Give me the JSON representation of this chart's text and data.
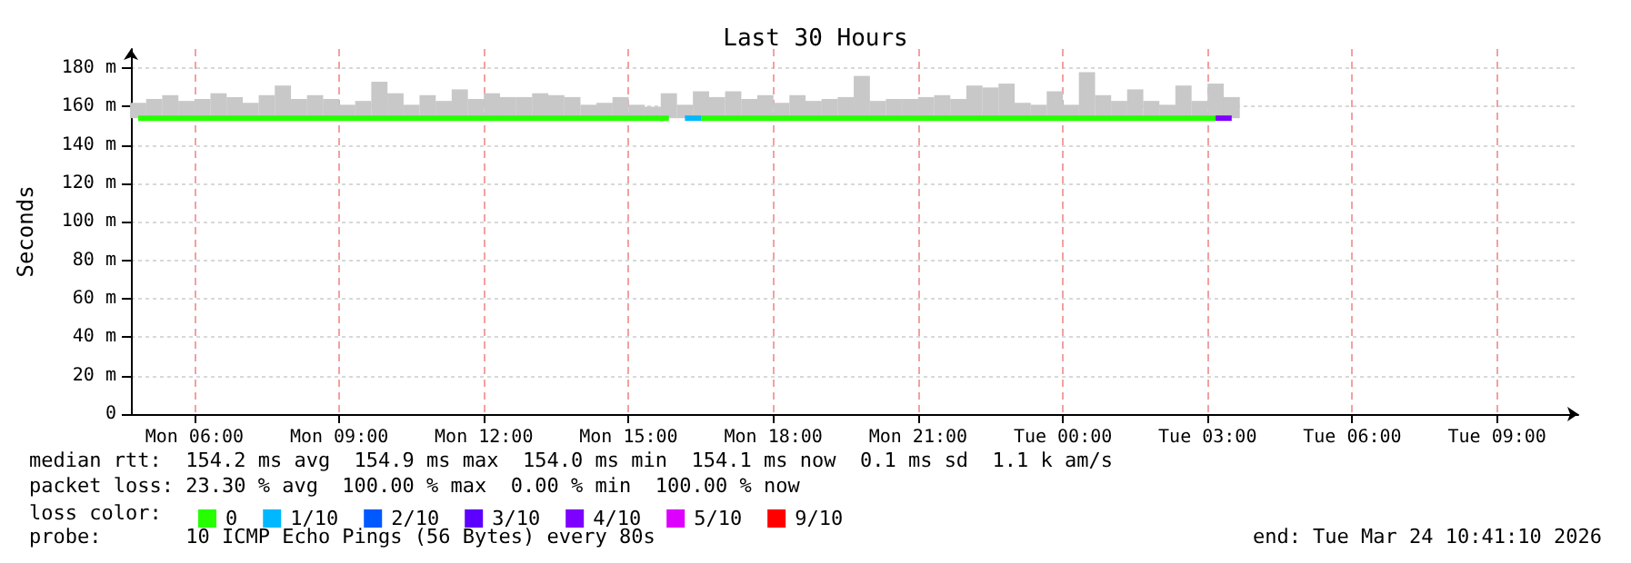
{
  "chart_data": {
    "type": "bar",
    "title": "Last 30 Hours",
    "ylabel": "Seconds",
    "legend_title": "loss color:",
    "legend": "bottom",
    "grid": true,
    "x": [
      "2026-03-23T04:50",
      "2026-03-23T05:10",
      "2026-03-23T05:30",
      "2026-03-23T05:50",
      "2026-03-23T06:10",
      "2026-03-23T06:30",
      "2026-03-23T06:50",
      "2026-03-23T07:10",
      "2026-03-23T07:30",
      "2026-03-23T07:50",
      "2026-03-23T08:10",
      "2026-03-23T08:30",
      "2026-03-23T08:50",
      "2026-03-23T09:10",
      "2026-03-23T09:30",
      "2026-03-23T09:50",
      "2026-03-23T10:10",
      "2026-03-23T10:30",
      "2026-03-23T10:50",
      "2026-03-23T11:10",
      "2026-03-23T11:30",
      "2026-03-23T11:50",
      "2026-03-23T12:10",
      "2026-03-23T12:30",
      "2026-03-23T12:50",
      "2026-03-23T13:10",
      "2026-03-23T13:30",
      "2026-03-23T13:50",
      "2026-03-23T14:10",
      "2026-03-23T14:30",
      "2026-03-23T14:50",
      "2026-03-23T15:10",
      "2026-03-23T15:30",
      "2026-03-23T15:50",
      "2026-03-23T16:10",
      "2026-03-23T16:30",
      "2026-03-23T16:50",
      "2026-03-23T17:10",
      "2026-03-23T17:30",
      "2026-03-23T17:50",
      "2026-03-23T18:10",
      "2026-03-23T18:30",
      "2026-03-23T18:50",
      "2026-03-23T19:10",
      "2026-03-23T19:30",
      "2026-03-23T19:50",
      "2026-03-23T20:10",
      "2026-03-23T20:30",
      "2026-03-23T20:50",
      "2026-03-23T21:10",
      "2026-03-23T21:30",
      "2026-03-23T21:50",
      "2026-03-23T22:10",
      "2026-03-23T22:30",
      "2026-03-23T22:50",
      "2026-03-23T23:10",
      "2026-03-23T23:30",
      "2026-03-23T23:50",
      "2026-03-24T00:10",
      "2026-03-24T00:30",
      "2026-03-24T00:50",
      "2026-03-24T01:10",
      "2026-03-24T01:30",
      "2026-03-24T01:50",
      "2026-03-24T02:10",
      "2026-03-24T02:30",
      "2026-03-24T02:50",
      "2026-03-24T03:10",
      "2026-03-24T03:30"
    ],
    "xlim": [
      "2026-03-23T04:41",
      "2026-03-24T10:41"
    ],
    "xticks": [
      {
        "value": "2026-03-23T06:00",
        "label": "Mon 06:00"
      },
      {
        "value": "2026-03-23T09:00",
        "label": "Mon 09:00"
      },
      {
        "value": "2026-03-23T12:00",
        "label": "Mon 12:00"
      },
      {
        "value": "2026-03-23T15:00",
        "label": "Mon 15:00"
      },
      {
        "value": "2026-03-23T18:00",
        "label": "Mon 18:00"
      },
      {
        "value": "2026-03-23T21:00",
        "label": "Mon 21:00"
      },
      {
        "value": "2026-03-24T00:00",
        "label": "Tue 00:00"
      },
      {
        "value": "2026-03-24T03:00",
        "label": "Tue 03:00"
      },
      {
        "value": "2026-03-24T06:00",
        "label": "Tue 06:00"
      },
      {
        "value": "2026-03-24T09:00",
        "label": "Tue 09:00"
      }
    ],
    "ylim": [
      0,
      190
    ],
    "yticks": [
      0,
      {
        "value": 20,
        "label": "20 m"
      },
      {
        "value": 40,
        "label": "40 m"
      },
      {
        "value": 60,
        "label": "60 m"
      },
      {
        "value": 80,
        "label": "80 m"
      },
      {
        "value": 100,
        "label": "100 m"
      },
      {
        "value": 120,
        "label": "120 m"
      },
      {
        "value": 140,
        "label": "140 m"
      },
      {
        "value": 160,
        "label": "160 m"
      },
      {
        "value": 180,
        "label": "180 m"
      }
    ],
    "series": [
      {
        "color": "#c8c8c8",
        "base": [
          154,
          154,
          154,
          154,
          154,
          154,
          154,
          154,
          154,
          154,
          154,
          154,
          154,
          154,
          154,
          154,
          154,
          154,
          154,
          154,
          154,
          154,
          154,
          154,
          154,
          154,
          154,
          154,
          154,
          154,
          154,
          154,
          154,
          154,
          154,
          154,
          154,
          154,
          154,
          154,
          154,
          154,
          154,
          154,
          154,
          154,
          154,
          154,
          154,
          154,
          154,
          154,
          154,
          154,
          154,
          154,
          154,
          154,
          154,
          154,
          154,
          154,
          154,
          154,
          154,
          154,
          154,
          154,
          154
        ],
        "values": [
          8,
          10,
          12,
          9,
          10,
          13,
          11,
          8,
          12,
          17,
          10,
          12,
          10,
          7,
          9,
          19,
          13,
          7,
          12,
          9,
          15,
          10,
          13,
          11,
          11,
          13,
          12,
          11,
          7,
          8,
          11,
          7,
          6,
          13,
          7,
          14,
          11,
          14,
          10,
          12,
          8,
          12,
          9,
          10,
          11,
          22,
          9,
          10,
          10,
          11,
          12,
          10,
          17,
          16,
          18,
          8,
          7,
          14,
          7,
          24,
          12,
          9,
          15,
          9,
          7,
          17,
          9,
          18,
          11
        ]
      },
      {
        "type": "line",
        "name": "0",
        "color": "#26ff00",
        "values": [
          154,
          154,
          154,
          154,
          154,
          154,
          154,
          154,
          154,
          154,
          154,
          154,
          154,
          154,
          154,
          154,
          154,
          154,
          154,
          154,
          154,
          154,
          154,
          154,
          154,
          154,
          154,
          154,
          154,
          154,
          154,
          154,
          154,
          154,
          null,
          154,
          154,
          154,
          154,
          154,
          154,
          154,
          154,
          154,
          154,
          154,
          154,
          154,
          154,
          154,
          154,
          154,
          154,
          154,
          154,
          154,
          154,
          154,
          154,
          154,
          154,
          154,
          154,
          154,
          154,
          154,
          154,
          154,
          null
        ]
      },
      {
        "type": "line",
        "name": "1/10",
        "color": "#00b8ff",
        "values": [
          null,
          null,
          null,
          null,
          null,
          null,
          null,
          null,
          null,
          null,
          null,
          null,
          null,
          null,
          null,
          null,
          null,
          null,
          null,
          null,
          null,
          null,
          null,
          null,
          null,
          null,
          null,
          null,
          null,
          null,
          null,
          null,
          null,
          null,
          154,
          154,
          null,
          null,
          null,
          null,
          null,
          null,
          null,
          null,
          null,
          null,
          null,
          null,
          null,
          null,
          null,
          null,
          null,
          null,
          null,
          null,
          null,
          null,
          null,
          null,
          null,
          null,
          null,
          null,
          null,
          null,
          null,
          null,
          null
        ]
      },
      {
        "type": "line",
        "name": "2/10",
        "color": "#0059ff",
        "values": [
          null,
          null,
          null,
          null,
          null,
          null,
          null,
          null,
          null,
          null,
          null,
          null,
          null,
          null,
          null,
          null,
          null,
          null,
          null,
          null,
          null,
          null,
          null,
          null,
          null,
          null,
          null,
          null,
          null,
          null,
          null,
          null,
          null,
          null,
          null,
          null,
          null,
          null,
          null,
          null,
          null,
          null,
          null,
          null,
          null,
          null,
          null,
          null,
          null,
          null,
          null,
          null,
          null,
          null,
          null,
          null,
          null,
          null,
          null,
          null,
          null,
          null,
          null,
          null,
          null,
          null,
          null,
          null,
          null
        ]
      },
      {
        "type": "line",
        "name": "3/10",
        "color": "#5e00ff",
        "values": [
          null,
          null,
          null,
          null,
          null,
          null,
          null,
          null,
          null,
          null,
          null,
          null,
          null,
          null,
          null,
          null,
          null,
          null,
          null,
          null,
          null,
          null,
          null,
          null,
          null,
          null,
          null,
          null,
          null,
          null,
          null,
          null,
          null,
          null,
          null,
          null,
          null,
          null,
          null,
          null,
          null,
          null,
          null,
          null,
          null,
          null,
          null,
          null,
          null,
          null,
          null,
          null,
          null,
          null,
          null,
          null,
          null,
          null,
          null,
          null,
          null,
          null,
          null,
          null,
          null,
          null,
          null,
          null,
          null
        ]
      },
      {
        "type": "line",
        "name": "4/10",
        "color": "#7e00ff",
        "values": [
          null,
          null,
          null,
          null,
          null,
          null,
          null,
          null,
          null,
          null,
          null,
          null,
          null,
          null,
          null,
          null,
          null,
          null,
          null,
          null,
          null,
          null,
          null,
          null,
          null,
          null,
          null,
          null,
          null,
          null,
          null,
          null,
          null,
          null,
          null,
          null,
          null,
          null,
          null,
          null,
          null,
          null,
          null,
          null,
          null,
          null,
          null,
          null,
          null,
          null,
          null,
          null,
          null,
          null,
          null,
          null,
          null,
          null,
          null,
          null,
          null,
          null,
          null,
          null,
          null,
          null,
          null,
          154,
          154
        ]
      },
      {
        "type": "line",
        "name": "5/10",
        "color": "#dd00ff",
        "values": [
          null,
          null,
          null,
          null,
          null,
          null,
          null,
          null,
          null,
          null,
          null,
          null,
          null,
          null,
          null,
          null,
          null,
          null,
          null,
          null,
          null,
          null,
          null,
          null,
          null,
          null,
          null,
          null,
          null,
          null,
          null,
          null,
          null,
          null,
          null,
          null,
          null,
          null,
          null,
          null,
          null,
          null,
          null,
          null,
          null,
          null,
          null,
          null,
          null,
          null,
          null,
          null,
          null,
          null,
          null,
          null,
          null,
          null,
          null,
          null,
          null,
          null,
          null,
          null,
          null,
          null,
          null,
          null,
          null
        ]
      },
      {
        "type": "line",
        "name": "9/10",
        "color": "#ff0000",
        "values": [
          null,
          null,
          null,
          null,
          null,
          null,
          null,
          null,
          null,
          null,
          null,
          null,
          null,
          null,
          null,
          null,
          null,
          null,
          null,
          null,
          null,
          null,
          null,
          null,
          null,
          null,
          null,
          null,
          null,
          null,
          null,
          null,
          null,
          null,
          null,
          null,
          null,
          null,
          null,
          null,
          null,
          null,
          null,
          null,
          null,
          null,
          null,
          null,
          null,
          null,
          null,
          null,
          null,
          null,
          null,
          null,
          null,
          null,
          null,
          null,
          null,
          null,
          null,
          null,
          null,
          null,
          null,
          null,
          null
        ]
      }
    ],
    "annotations": [
      "median rtt:  154.2 ms avg  154.9 ms max  154.0 ms min  154.1 ms now  0.1 ms sd  1.1 k am/s",
      "packet loss: 23.30 % avg  100.00 % max  0.00 % min  100.00 % now",
      "probe:       10 ICMP Echo Pings (56 Bytes) every 80s",
      "end: Tue Mar 24 10:41:10 2026"
    ]
  }
}
